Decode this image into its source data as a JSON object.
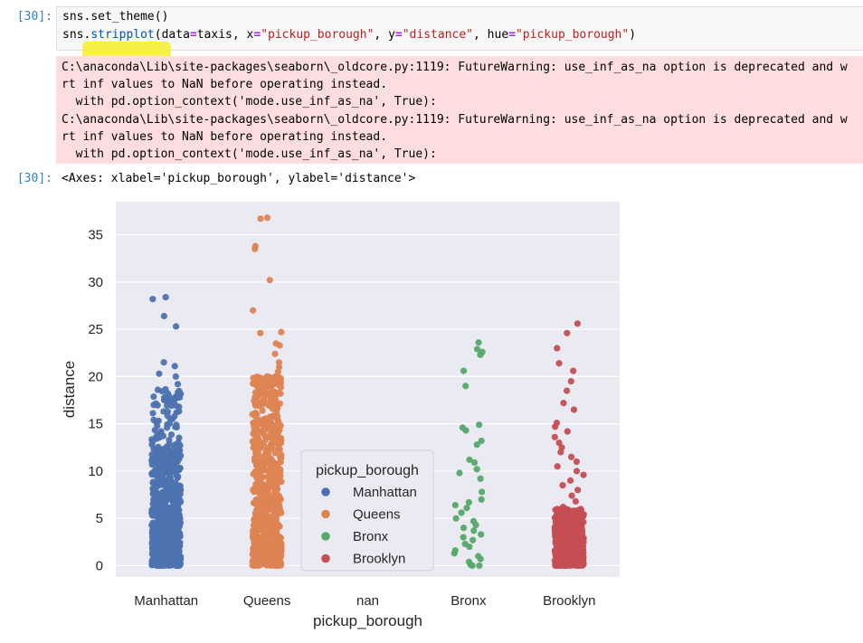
{
  "cells": {
    "input_prompt": "[30]:",
    "output_prompt": "[30]:",
    "code_lines": [
      [
        {
          "t": "sns",
          "c": ""
        },
        {
          "t": ".",
          "c": ""
        },
        {
          "t": "set_theme",
          "c": ""
        },
        {
          "t": "()",
          "c": ""
        }
      ],
      [
        {
          "t": "sns",
          "c": ""
        },
        {
          "t": ".",
          "c": ""
        },
        {
          "t": "stripplot",
          "c": "fn"
        },
        {
          "t": "(data",
          "c": ""
        },
        {
          "t": "=",
          "c": "eq"
        },
        {
          "t": "taxis, x",
          "c": ""
        },
        {
          "t": "=",
          "c": "eq"
        },
        {
          "t": "\"pickup_borough\"",
          "c": "str"
        },
        {
          "t": ", y",
          "c": ""
        },
        {
          "t": "=",
          "c": "eq"
        },
        {
          "t": "\"distance\"",
          "c": "str"
        },
        {
          "t": ", hue",
          "c": ""
        },
        {
          "t": "=",
          "c": "eq"
        },
        {
          "t": "\"pickup_borough\"",
          "c": "str"
        },
        {
          "t": ")",
          "c": ""
        }
      ]
    ],
    "stderr_lines": [
      "C:\\anaconda\\Lib\\site-packages\\seaborn\\_oldcore.py:1119: FutureWarning: use_inf_as_na option is deprecated and w",
      "rt inf values to NaN before operating instead.",
      "  with pd.option_context('mode.use_inf_as_na', True):",
      "C:\\anaconda\\Lib\\site-packages\\seaborn\\_oldcore.py:1119: FutureWarning: use_inf_as_na option is deprecated and w",
      "rt inf values to NaN before operating instead.",
      "  with pd.option_context('mode.use_inf_as_na', True):"
    ],
    "output_text": "<Axes: xlabel='pickup_borough', ylabel='distance'>"
  },
  "chart_data": {
    "type": "scatter",
    "xlabel": "pickup_borough",
    "ylabel": "distance",
    "categories": [
      "Manhattan",
      "Queens",
      "nan",
      "Bronx",
      "Brooklyn"
    ],
    "ylim": [
      -1.2,
      38.5
    ],
    "yticks": [
      0,
      5,
      10,
      15,
      20,
      25,
      30,
      35
    ],
    "grid": true,
    "legend": {
      "title": "pickup_borough",
      "placement": "center-bottom",
      "entries": [
        "Manhattan",
        "Queens",
        "Bronx",
        "Brooklyn"
      ]
    },
    "series": [
      {
        "name": "Manhattan",
        "category": "Manhattan",
        "color": "#4c72b0",
        "outliers": [
          28.4,
          28.2,
          26.4,
          25.3,
          21.5,
          21.1,
          20.3,
          20.0,
          19.2,
          18.6,
          17.5,
          16.8,
          16.2,
          15.5,
          14.8,
          14.2,
          13.3,
          12.6
        ],
        "dense_max": 12.5,
        "mid_max": 19.0
      },
      {
        "name": "Queens",
        "category": "Queens",
        "color": "#dd8452",
        "outliers": [
          36.8,
          36.7,
          33.8,
          33.5,
          30.2,
          27.0,
          24.7,
          24.6,
          23.5,
          23.3,
          22.4,
          21.5,
          21.0,
          20.5,
          20.0,
          19.2
        ],
        "dense_max": 19.0,
        "mid_max": 20.0
      },
      {
        "name": "Bronx",
        "category": "Bronx",
        "color": "#55a868",
        "outliers": [
          23.6,
          22.9,
          22.6,
          22.3,
          20.6,
          19.0,
          14.9,
          14.6,
          14.3,
          13.2,
          12.8,
          11.2,
          10.9,
          10.2,
          9.8,
          9.2,
          7.8,
          7.0,
          6.7,
          6.4,
          6.1,
          5.6,
          5.0,
          4.7,
          4.3,
          4.0,
          3.7,
          3.3,
          3.0,
          2.7,
          2.3,
          2.0,
          1.6,
          1.3,
          1.0,
          0.7,
          0.4,
          0.1,
          0.0,
          0.0
        ],
        "dense_max": 0,
        "mid_max": 0
      },
      {
        "name": "Brooklyn",
        "category": "Brooklyn",
        "color": "#c44e52",
        "outliers": [
          25.6,
          24.6,
          23.0,
          21.4,
          20.6,
          19.5,
          18.5,
          17.2,
          16.5,
          15.1,
          14.7,
          14.2,
          13.6,
          13.0,
          12.5,
          12.0,
          11.5,
          11.0,
          10.5,
          10.0,
          9.6,
          9.0,
          8.5,
          8.0,
          7.4,
          6.8,
          6.2
        ],
        "dense_max": 6.0,
        "mid_max": 6.0
      }
    ]
  }
}
